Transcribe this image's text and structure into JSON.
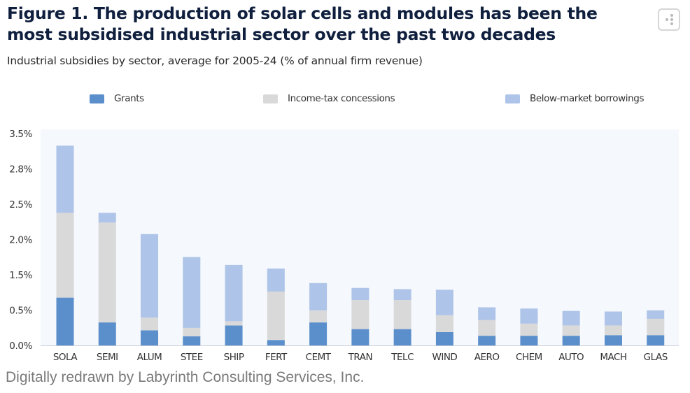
{
  "header": {
    "title": "Figure 1. The production of solar cells and modules has been the most subsidised industrial sector over the past two decades",
    "subtitle": "Industrial subsidies by sector, average for 2005-24 (% of annual firm revenue)",
    "menu_icon": "vertical-dots-menu-icon"
  },
  "caption": "Digitally redrawn by Labyrinth Consulting Services, Inc.",
  "chart_data": {
    "type": "bar",
    "stacked": true,
    "title": "Industrial subsidies by sector, average for 2005-24 (% of annual firm revenue)",
    "xlabel": "",
    "ylabel": "",
    "ylim": [
      0,
      3.5
    ],
    "y_tick_labels": [
      "0.0%",
      "0.5%",
      "1.5%",
      "2.0%",
      "2.5%",
      "2.8%",
      "3.5%"
    ],
    "grid": false,
    "legend_position": "top",
    "categories": [
      "SOLA",
      "SEMI",
      "ALUM",
      "STEE",
      "SHIP",
      "FERT",
      "CEMT",
      "TRAN",
      "TELC",
      "WIND",
      "AERO",
      "CHEM",
      "AUTO",
      "MACH",
      "GLAS"
    ],
    "series": [
      {
        "name": "Grants",
        "color": "#5a8fcc",
        "values": [
          0.79,
          0.38,
          0.25,
          0.15,
          0.33,
          0.09,
          0.38,
          0.27,
          0.27,
          0.22,
          0.16,
          0.16,
          0.16,
          0.17,
          0.17
        ]
      },
      {
        "name": "Income-tax concessions",
        "color": "#d9d9d9",
        "values": [
          1.4,
          1.65,
          0.21,
          0.14,
          0.07,
          0.8,
          0.2,
          0.48,
          0.48,
          0.28,
          0.26,
          0.2,
          0.17,
          0.16,
          0.27
        ]
      },
      {
        "name": "Below-market borrowings",
        "color": "#aec4e8",
        "values": [
          1.11,
          0.16,
          1.38,
          1.17,
          0.93,
          0.38,
          0.45,
          0.2,
          0.18,
          0.42,
          0.21,
          0.25,
          0.24,
          0.23,
          0.14
        ]
      }
    ]
  }
}
